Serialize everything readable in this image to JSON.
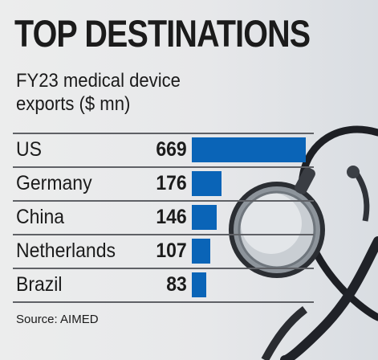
{
  "title": "TOP DESTINATIONS",
  "subtitle_line1": "FY23 medical device",
  "subtitle_line2": "exports ($ mn)",
  "source": "Source: AIMED",
  "colors": {
    "bar": "#0a64b7",
    "text": "#1b1b1b",
    "rule": "#5f6166"
  },
  "chart_data": {
    "type": "bar",
    "orientation": "horizontal",
    "title": "TOP DESTINATIONS",
    "subtitle": "FY23 medical device exports ($ mn)",
    "categories": [
      "US",
      "Germany",
      "China",
      "Netherlands",
      "Brazil"
    ],
    "values": [
      669,
      176,
      146,
      107,
      83
    ],
    "grid": false,
    "legend": "none",
    "source": "Source: AIMED"
  }
}
